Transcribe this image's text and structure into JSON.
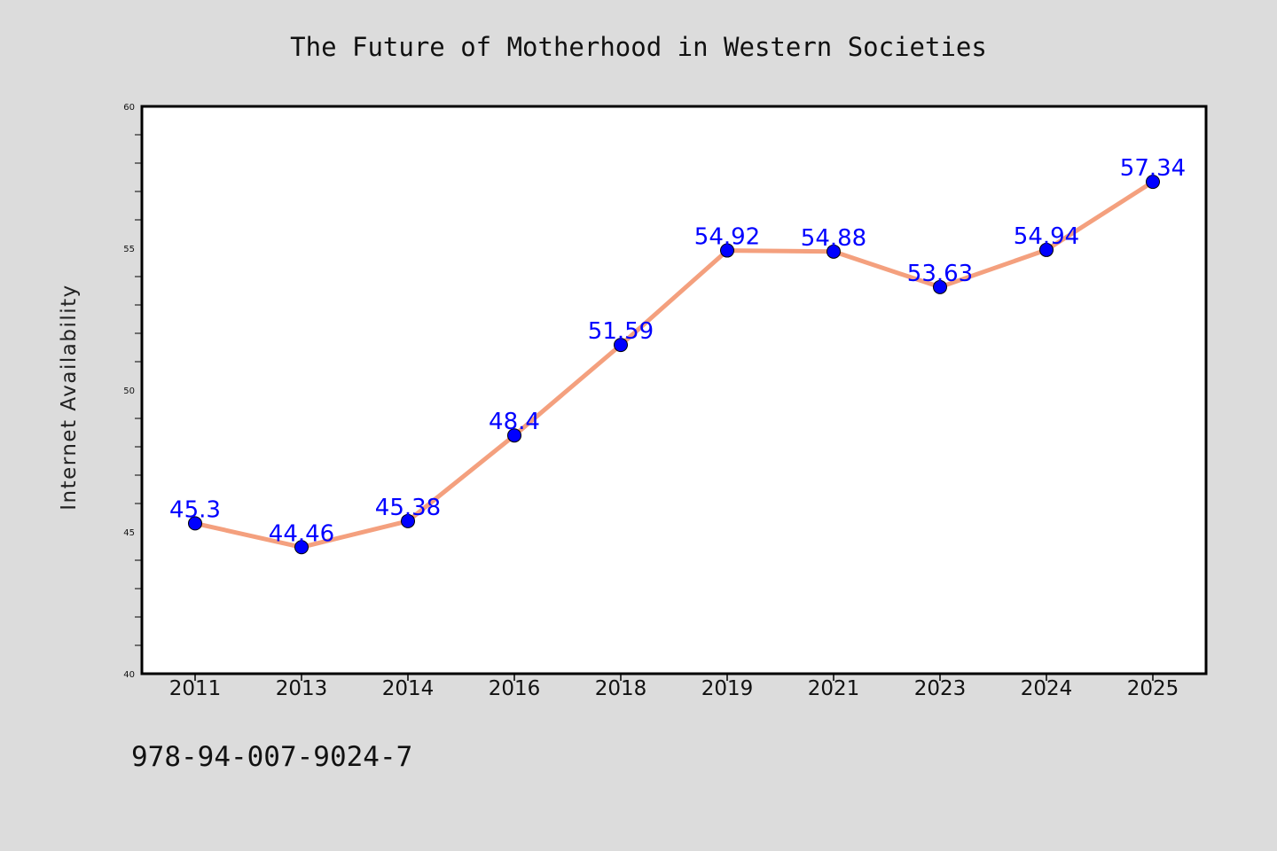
{
  "isbn": "978-94-007-9024-7",
  "colors": {
    "background": "#dcdcdc",
    "plot_background": "#ffffff",
    "line": "#f4a07e",
    "marker": "#0000ff",
    "data_label": "#0000ff"
  },
  "chart_data": {
    "type": "line",
    "title": "The Future of Motherhood in Western Societies",
    "xlabel": "",
    "ylabel": "Internet Availability",
    "categories": [
      "2011",
      "2013",
      "2014",
      "2016",
      "2018",
      "2019",
      "2021",
      "2023",
      "2024",
      "2025"
    ],
    "values": [
      45.3,
      44.46,
      45.38,
      48.4,
      51.59,
      54.92,
      54.88,
      53.63,
      54.94,
      57.34
    ],
    "data_labels": [
      "45.3",
      "44.46",
      "45.38",
      "48.4",
      "51.59",
      "54.92",
      "54.88",
      "53.63",
      "54.94",
      "57.34"
    ],
    "ylim": [
      40,
      60
    ],
    "yticks": [
      "40",
      "45",
      "50",
      "55",
      "60"
    ],
    "grid": false,
    "legend": "none"
  }
}
